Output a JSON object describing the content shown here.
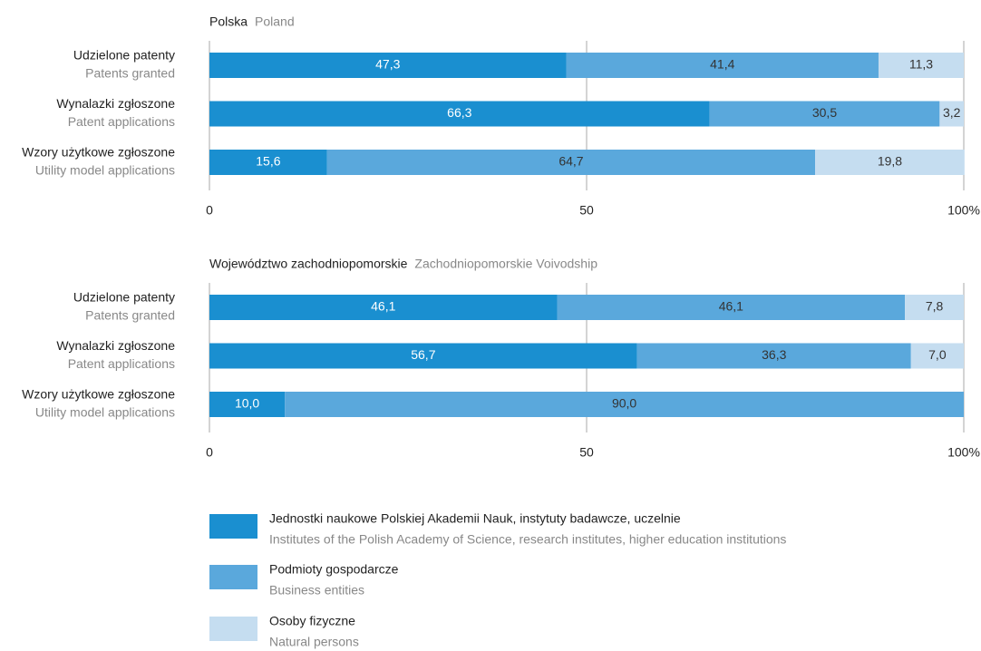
{
  "chart_data": [
    {
      "type": "stacked_bar_horizontal",
      "title": "Polska",
      "subtitle": "Poland",
      "categories": [
        "Udzielone patenty",
        "Wynalazki zgłoszone",
        "Wzory użytkowe zgłoszone"
      ],
      "categories_en": [
        "Patents granted",
        "Patent applications",
        "Utility model applications"
      ],
      "xlim": [
        0,
        100
      ],
      "xticks": [
        0,
        50,
        {
          "value": 100,
          "label": "100%"
        }
      ],
      "grid": true,
      "series": [
        {
          "values": [
            47.3,
            66.3,
            15.6
          ],
          "value_labels": [
            "47,3",
            "66,3",
            "15,6"
          ]
        },
        {
          "values": [
            41.4,
            30.5,
            64.7
          ],
          "value_labels": [
            "41,4",
            "30,5",
            "64,7"
          ]
        },
        {
          "values": [
            11.3,
            3.2,
            19.8
          ],
          "value_labels": [
            "11,3",
            "3,2",
            "19,8"
          ]
        }
      ]
    },
    {
      "type": "stacked_bar_horizontal",
      "title": "Województwo zachodniopomorskie",
      "subtitle": "Zachodniopomorskie Voivodship",
      "categories": [
        "Udzielone patenty",
        "Wynalazki zgłoszone",
        "Wzory użytkowe zgłoszone"
      ],
      "categories_en": [
        "Patents granted",
        "Patent applications",
        "Utility model applications"
      ],
      "xlim": [
        0,
        100
      ],
      "xticks": [
        0,
        50,
        {
          "value": 100,
          "label": "100%"
        }
      ],
      "grid": true,
      "series": [
        {
          "values": [
            46.1,
            56.7,
            10.0
          ],
          "value_labels": [
            "46,1",
            "56,7",
            "10,0"
          ]
        },
        {
          "values": [
            46.1,
            36.3,
            90.0
          ],
          "value_labels": [
            "46,1",
            "36,3",
            "90,0"
          ]
        },
        {
          "values": [
            7.8,
            7.0,
            null
          ],
          "value_labels": [
            "7,8",
            "7,0",
            null
          ]
        }
      ]
    }
  ],
  "legend": [
    {
      "name": "Jednostki naukowe Polskiej Akademii Nauk, instytuty badawcze, uczelnie",
      "name_en": "Institutes of the Polish Academy of Science, research institutes, higher education institutions",
      "color": "#1a8fd0",
      "label_color": "#ffffff"
    },
    {
      "name": "Podmioty gospodarcze",
      "name_en": "Business entities",
      "color": "#5aa8dc",
      "label_color": "#333333"
    },
    {
      "name": "Osoby fizyczne",
      "name_en": "Natural persons",
      "color": "#c5ddf0",
      "label_color": "#333333"
    }
  ]
}
